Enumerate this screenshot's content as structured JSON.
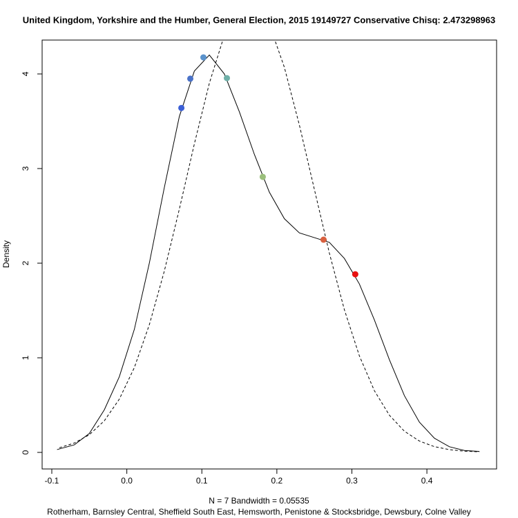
{
  "chart_data": {
    "type": "line",
    "title": "United Kingdom, Yorkshire and the Humber, General Election, 2015 19149727 Conservative Chisq: 2.473298963",
    "xlabel": "N = 7   Bandwidth = 0.05535",
    "subtitle": "Rotherham, Barnsley Central, Sheffield South East, Hemsworth, Penistone & Stocksbridge, Dewsbury, Colne Valley",
    "ylabel": "Density",
    "xlim": [
      -0.1129,
      0.4929
    ],
    "ylim": [
      -0.175,
      4.358
    ],
    "xticks": [
      -0.1,
      {
        "value": 0,
        "label": "0.0"
      },
      0.1,
      0.2,
      0.3,
      0.4
    ],
    "yticks": [
      0,
      1,
      2,
      3,
      4
    ],
    "series": [
      {
        "color": "#000000",
        "line_style": "solid",
        "x": [
          -0.093,
          -0.07,
          -0.05,
          -0.03,
          -0.01,
          0.01,
          0.03,
          0.05,
          0.07,
          0.09,
          0.11,
          0.13,
          0.15,
          0.17,
          0.19,
          0.21,
          0.23,
          0.25,
          0.27,
          0.29,
          0.31,
          0.33,
          0.35,
          0.37,
          0.39,
          0.41,
          0.43,
          0.45,
          0.47
        ],
        "values": [
          0.03,
          0.08,
          0.2,
          0.45,
          0.8,
          1.3,
          2.0,
          2.8,
          3.55,
          4.03,
          4.2,
          4.0,
          3.6,
          3.15,
          2.75,
          2.47,
          2.32,
          2.27,
          2.22,
          2.05,
          1.78,
          1.4,
          0.98,
          0.6,
          0.32,
          0.15,
          0.06,
          0.02,
          0.01
        ]
      },
      {
        "color": "#000000",
        "line_style": "dashed",
        "x": [
          -0.09,
          -0.07,
          -0.05,
          -0.03,
          -0.01,
          0.01,
          0.03,
          0.05,
          0.07,
          0.09,
          0.11,
          0.13,
          0.15,
          0.17,
          0.19,
          0.21,
          0.23,
          0.25,
          0.27,
          0.29,
          0.31,
          0.33,
          0.35,
          0.37,
          0.39,
          0.41,
          0.43,
          0.45,
          0.47
        ],
        "values": [
          0.049,
          0.099,
          0.187,
          0.334,
          0.563,
          0.896,
          1.349,
          1.917,
          2.571,
          3.26,
          3.902,
          4.409,
          4.709,
          4.749,
          4.524,
          4.07,
          3.46,
          2.78,
          2.106,
          1.508,
          1.02,
          0.652,
          0.393,
          0.224,
          0.12,
          0.061,
          0.029,
          0.013,
          0.006
        ]
      },
      {
        "line_style": "points",
        "x": [
          0.0727,
          0.0846,
          0.1021,
          0.1334,
          0.1812,
          0.2622,
          0.3045
        ],
        "values": [
          3.64,
          3.95,
          4.175,
          3.956,
          2.912,
          2.248,
          1.883
        ],
        "colors": [
          "#3b5fd6",
          "#4a72c8",
          "#5b93cc",
          "#6fb0a8",
          "#9bbf7c",
          "#d9603f",
          "#e81010"
        ]
      }
    ]
  }
}
